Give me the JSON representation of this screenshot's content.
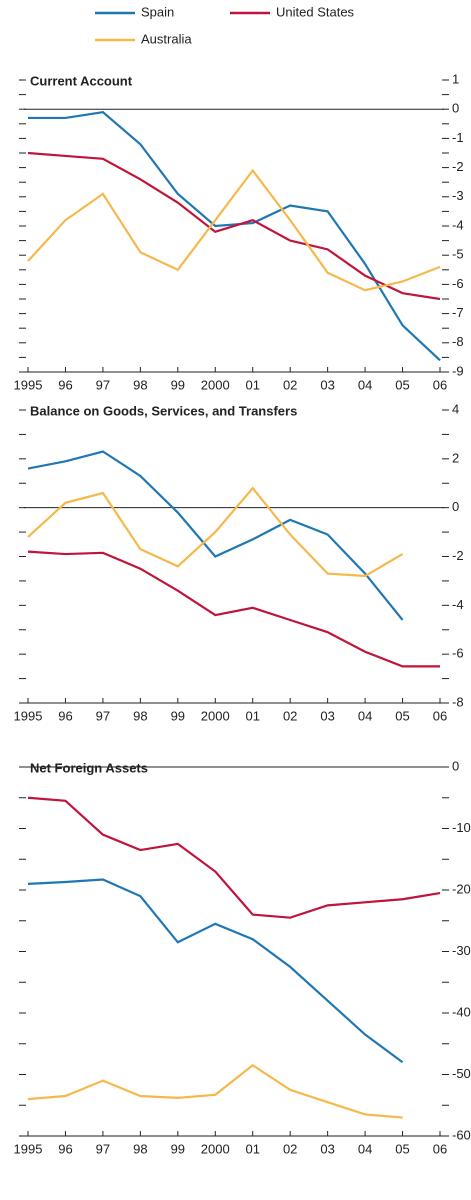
{
  "chart_data": [
    {
      "type": "line",
      "title": "Current Account",
      "categories": [
        "1995",
        "96",
        "97",
        "98",
        "99",
        "2000",
        "01",
        "02",
        "03",
        "04",
        "05",
        "06"
      ],
      "ylim": [
        -9,
        1
      ],
      "yticks": [
        -9,
        -8,
        -7,
        -6,
        -5,
        -4,
        -3,
        -2,
        -1,
        0,
        1
      ],
      "series": [
        {
          "name": "Spain",
          "color": "#1f77b4",
          "values": [
            -0.3,
            -0.3,
            -0.1,
            -1.2,
            -2.9,
            -4.0,
            -3.9,
            -3.3,
            -3.5,
            -5.3,
            -7.4,
            -8.6
          ]
        },
        {
          "name": "United States",
          "color": "#c0143c",
          "values": [
            -1.5,
            -1.6,
            -1.7,
            -2.4,
            -3.2,
            -4.2,
            -3.8,
            -4.5,
            -4.8,
            -5.7,
            -6.3,
            -6.5
          ]
        },
        {
          "name": "Australia",
          "color": "#f7b84b",
          "values": [
            -5.2,
            -3.8,
            -2.9,
            -4.9,
            -5.5,
            -3.8,
            -2.1,
            -3.8,
            -5.6,
            -6.2,
            -5.9,
            -5.4
          ]
        }
      ]
    },
    {
      "type": "line",
      "title": "Balance on Goods, Services, and Transfers",
      "categories": [
        "1995",
        "96",
        "97",
        "98",
        "99",
        "2000",
        "01",
        "02",
        "03",
        "04",
        "05",
        "06"
      ],
      "ylim": [
        -8,
        4
      ],
      "yticks": [
        -8,
        -6,
        -4,
        -2,
        0,
        2,
        4
      ],
      "series": [
        {
          "color": "#1f77b4",
          "values": [
            1.6,
            1.9,
            2.3,
            1.3,
            -0.2,
            -2.0,
            -1.3,
            -0.5,
            -1.1,
            -2.7,
            -4.6,
            null
          ]
        },
        {
          "color": "#c0143c",
          "values": [
            -1.8,
            -1.9,
            -1.85,
            -2.5,
            -3.4,
            -4.4,
            -4.1,
            -4.6,
            -5.1,
            -5.9,
            -6.5,
            -6.5
          ]
        },
        {
          "color": "#f7b84b",
          "values": [
            -1.2,
            0.2,
            0.6,
            -1.7,
            -2.4,
            -1.0,
            0.8,
            -1.1,
            -2.7,
            -2.8,
            -1.9,
            null
          ]
        }
      ]
    },
    {
      "type": "line",
      "title": "Net Foreign Assets",
      "categories": [
        "1995",
        "96",
        "97",
        "98",
        "99",
        "2000",
        "01",
        "02",
        "03",
        "04",
        "05",
        "06"
      ],
      "ylim": [
        -60,
        0
      ],
      "yticks": [
        -60,
        -50,
        -40,
        -30,
        -20,
        -10,
        0
      ],
      "series": [
        {
          "color": "#1f77b4",
          "values": [
            -19,
            -18.7,
            -18.3,
            -21,
            -28.5,
            -25.5,
            -28,
            -32.5,
            -38,
            -43.5,
            -48,
            null
          ]
        },
        {
          "color": "#c0143c",
          "values": [
            -5,
            -5.5,
            -11,
            -13.5,
            -12.5,
            -17,
            -24,
            -24.5,
            -22.5,
            -22,
            -21.5,
            -20.5
          ]
        },
        {
          "color": "#f7b84b",
          "values": [
            -54,
            -53.5,
            -51,
            -53.5,
            -53.8,
            -53.3,
            -48.5,
            -52.5,
            -54.5,
            -56.5,
            -57,
            null
          ]
        }
      ]
    }
  ]
}
